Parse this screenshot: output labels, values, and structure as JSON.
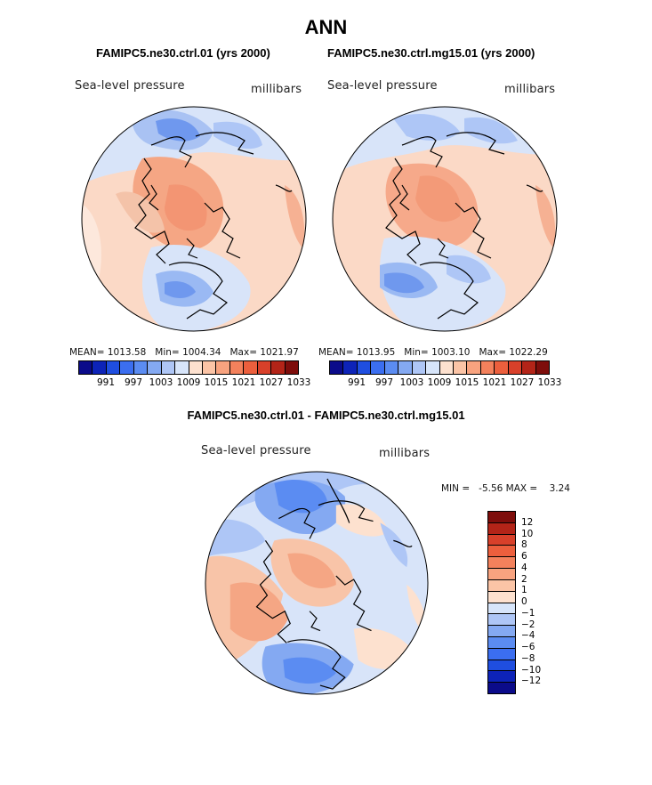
{
  "title": "ANN",
  "panels": [
    {
      "title": "FAMIPC5.ne30.ctrl.01 (yrs 2000)",
      "variable": "Sea-level pressure",
      "units": "millibars",
      "stats": "MEAN= 1013.58   Min= 1004.34   Max= 1021.97"
    },
    {
      "title": "FAMIPC5.ne30.ctrl.mg15.01 (yrs 2000)",
      "variable": "Sea-level pressure",
      "units": "millibars",
      "stats": "MEAN= 1013.95   Min= 1003.10   Max= 1022.29"
    },
    {
      "title": "FAMIPC5.ne30.ctrl.01 - FAMIPC5.ne30.ctrl.mg15.01",
      "variable": "Sea-level pressure",
      "units": "millibars",
      "stats": "MIN =   -5.56 MAX =    3.24"
    }
  ],
  "colorbar_top": {
    "tick_labels": [
      "991",
      "997",
      "1003",
      "1009",
      "1015",
      "1021",
      "1027",
      "1033"
    ],
    "colors": [
      "#0b0b8a",
      "#0d23b8",
      "#1f4ee0",
      "#3b6ef0",
      "#5b8cf2",
      "#84a9f2",
      "#aec6f6",
      "#d7e5fa",
      "#fde1cf",
      "#fbc4a6",
      "#f8a37f",
      "#f3815c",
      "#ec5f3d",
      "#d8402a",
      "#b32418",
      "#7e0d0b"
    ]
  },
  "colorbar_diff": {
    "tick_labels": [
      "12",
      "10",
      "8",
      "6",
      "4",
      "2",
      "1",
      "0",
      "−1",
      "−2",
      "−4",
      "−6",
      "−8",
      "−10",
      "−12"
    ],
    "colors": [
      "#7e0d0b",
      "#b32418",
      "#d8402a",
      "#ec5f3d",
      "#f3815c",
      "#f8a37f",
      "#fbc4a6",
      "#fde1cf",
      "#d7e5fa",
      "#aec6f6",
      "#84a9f2",
      "#5b8cf2",
      "#3b6ef0",
      "#1f4ee0",
      "#0d23b8",
      "#0b0b8a"
    ]
  }
}
